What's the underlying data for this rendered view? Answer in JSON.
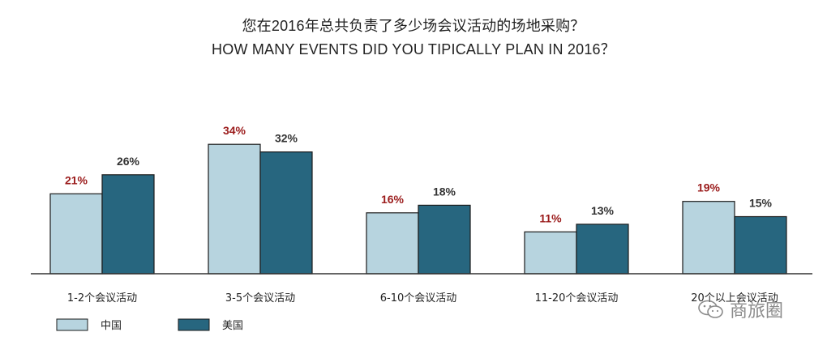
{
  "chart_data": {
    "type": "bar",
    "title": "您在2016年总共负责了多少场会议活动的场地采购？",
    "subtitle": "HOW MANY EVENTS DID YOU TIPICALLY PLAN IN 2016？",
    "categories": [
      "1-2个会议活动",
      "3-5个会议活动",
      "6-10个会议活动",
      "11-20个会议活动",
      "20个以上会议活动"
    ],
    "series": [
      {
        "name": "中国",
        "values": [
          21,
          34,
          16,
          11,
          19
        ],
        "labels": [
          "21%",
          "34%",
          "16%",
          "11%",
          "19%"
        ],
        "color": "#b7d4df",
        "label_color": "#9b1c1c"
      },
      {
        "name": "美国",
        "values": [
          26,
          32,
          18,
          13,
          15
        ],
        "labels": [
          "26%",
          "32%",
          "18%",
          "13%",
          "15%"
        ],
        "color": "#27667f",
        "label_color": "#333333"
      }
    ],
    "ylim": [
      0,
      37
    ],
    "grid": false,
    "legend_position": "bottom-left",
    "value_unit": "%"
  },
  "watermark": {
    "text": "商旅圈",
    "icon": "wechat-icon"
  }
}
